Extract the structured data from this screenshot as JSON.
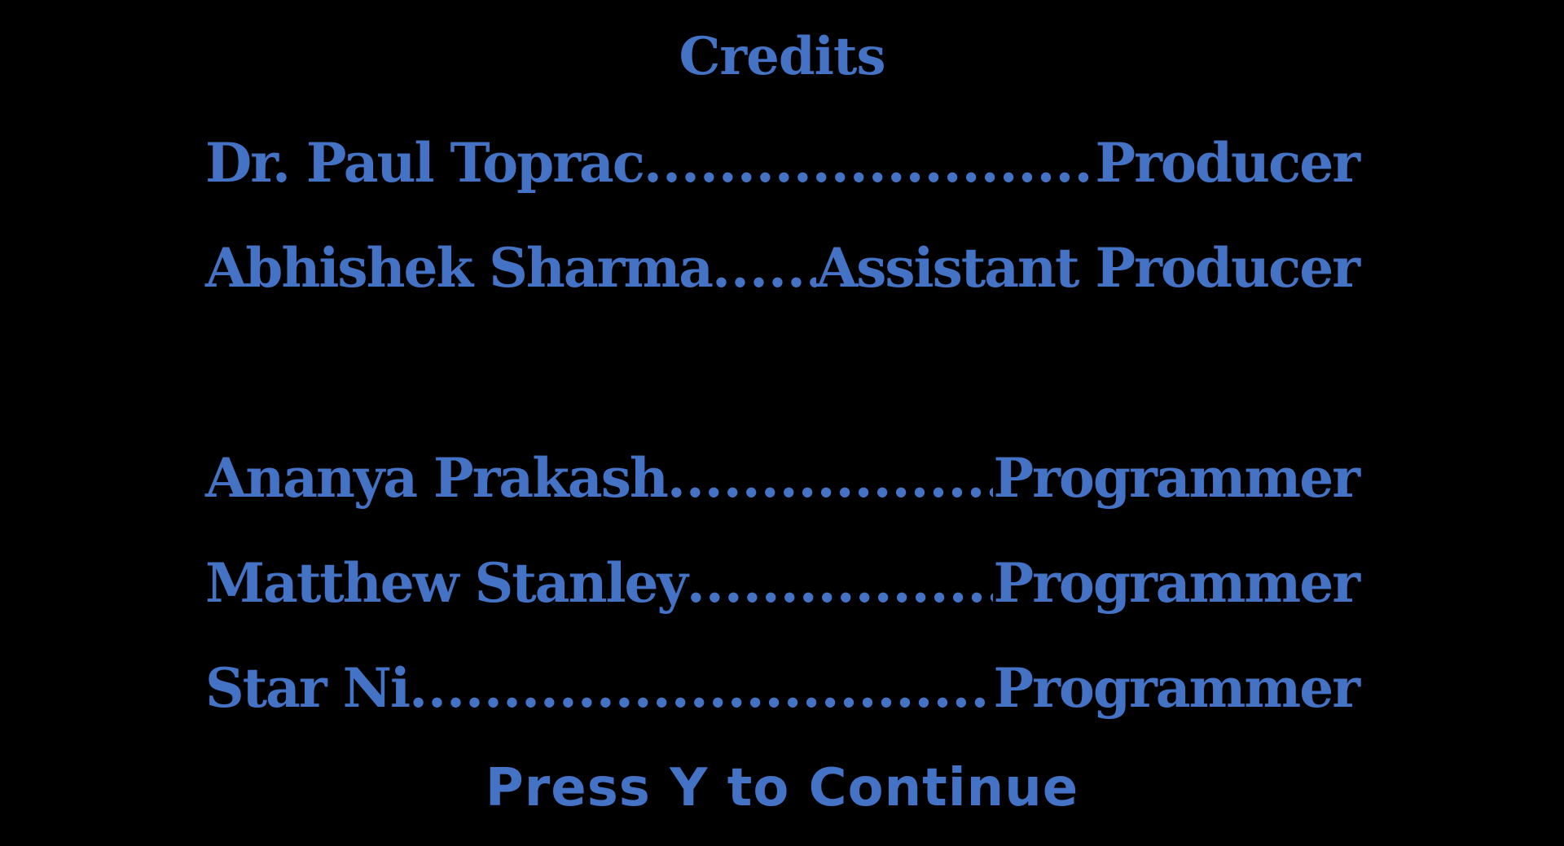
{
  "screen": {
    "title": "Credits",
    "prompt": "Press Y to Continue"
  },
  "credits": [
    {
      "name": "Dr. Paul Toprac",
      "role": "Producer"
    },
    {
      "name": "Abhishek Sharma",
      "role": "Assistant Producer"
    },
    {
      "name": "Ananya Prakash",
      "role": "Programmer"
    },
    {
      "name": "Matthew Stanley",
      "role": "Programmer"
    },
    {
      "name": "Star Ni",
      "role": "Programmer"
    }
  ],
  "colors": {
    "background": "#000000",
    "text": "#4472c4"
  }
}
